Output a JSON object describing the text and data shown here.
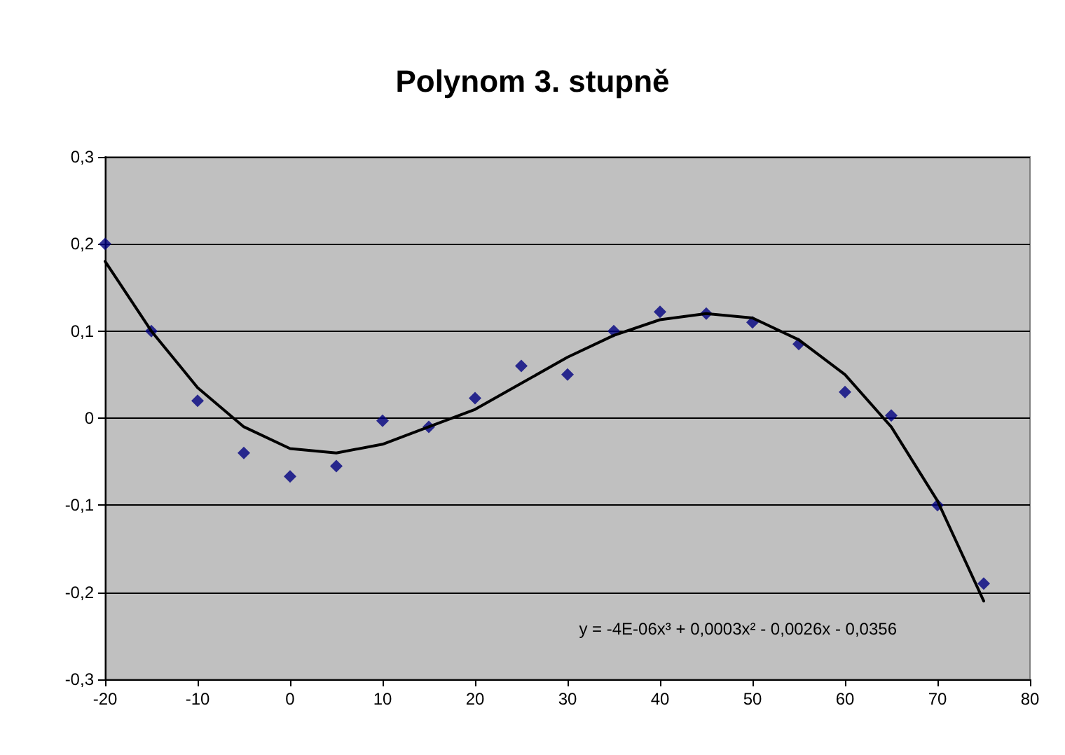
{
  "chart_data": {
    "type": "scatter",
    "title": "Polynom 3. stupně",
    "marker": "diamond",
    "grid": "y",
    "xlim": [
      -20,
      80
    ],
    "xticks": [
      -20,
      -10,
      0,
      10,
      20,
      30,
      40,
      50,
      60,
      70,
      80
    ],
    "ylim": [
      -0.3,
      0.3
    ],
    "yticks": [
      {
        "value": -0.3,
        "label": "-0,3"
      },
      {
        "value": -0.2,
        "label": "-0,2"
      },
      {
        "value": -0.1,
        "label": "-0,1"
      },
      {
        "value": 0,
        "label": "0"
      },
      {
        "value": 0.1,
        "label": "0,1"
      },
      {
        "value": 0.2,
        "label": "0,2"
      },
      {
        "value": 0.3,
        "label": "0,3"
      }
    ],
    "annotations": [
      "y = -4E-06x³ + 0,0003x² - 0,0026x - 0,0356"
    ],
    "series": [
      {
        "color": "#000080",
        "x": [
          -20,
          -15,
          -10,
          -5,
          0,
          5,
          10,
          15,
          20,
          25,
          30,
          35,
          40,
          45,
          50,
          55,
          60,
          65,
          70,
          75
        ],
        "values": [
          0.2,
          0.1,
          0.02,
          -0.04,
          -0.067,
          -0.055,
          -0.003,
          -0.01,
          0.023,
          0.06,
          0.05,
          0.1,
          0.122,
          0.12,
          0.11,
          0.085,
          0.03,
          0.003,
          -0.1,
          -0.19
        ]
      },
      {
        "type": "line",
        "color": "#000000",
        "marker": "none",
        "line_style": "solid",
        "x": [
          -20,
          -15,
          -10,
          -5,
          0,
          5,
          10,
          15,
          20,
          25,
          30,
          35,
          40,
          45,
          50,
          55,
          60,
          65,
          70,
          75
        ],
        "values": [
          0.18,
          0.1,
          0.035,
          -0.01,
          -0.035,
          -0.04,
          -0.03,
          -0.01,
          0.01,
          0.04,
          0.07,
          0.095,
          0.113,
          0.12,
          0.115,
          0.09,
          0.05,
          -0.01,
          -0.095,
          -0.21
        ]
      }
    ]
  }
}
